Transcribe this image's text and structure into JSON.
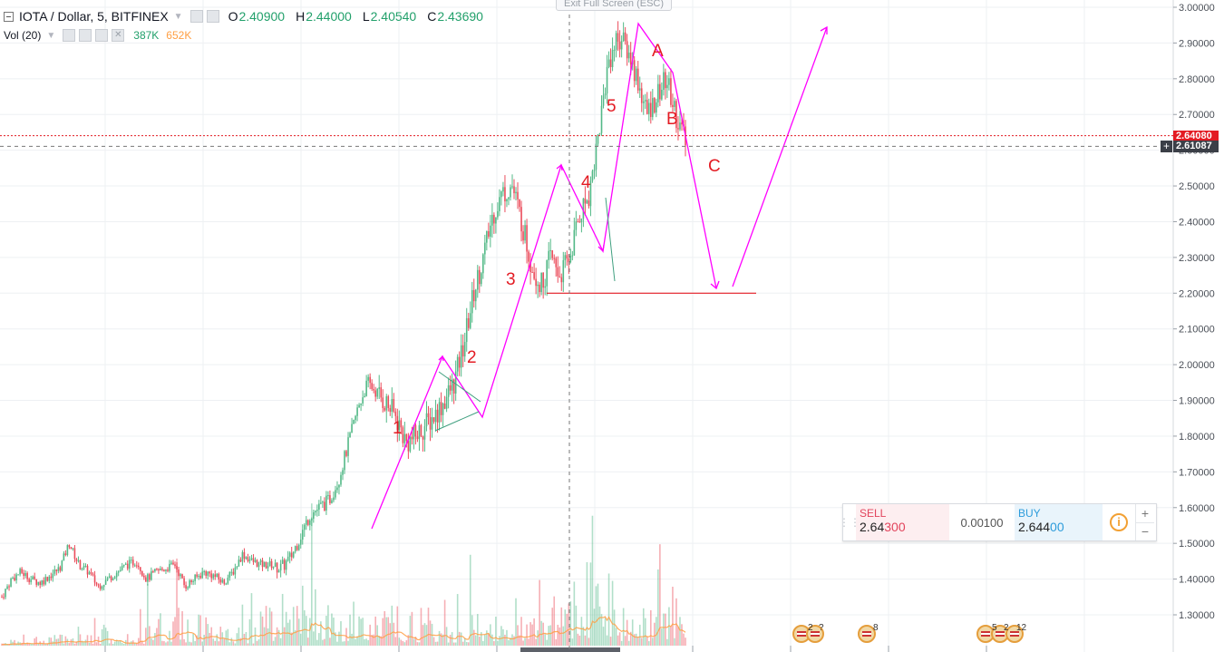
{
  "header": {
    "symbol": "IOTA / Dollar, 5, BITFINEX",
    "open_label": "O",
    "open": "2.40900",
    "high_label": "H",
    "high": "2.44000",
    "low_label": "L",
    "low": "2.40540",
    "close_label": "C",
    "close": "2.43690"
  },
  "volume_legend": {
    "label": "Vol (20)",
    "value1": "387K",
    "value2": "652K"
  },
  "fullscreen_banner": "Exit Full Screen (ESC)",
  "price_tags": {
    "red": "2.64080",
    "dark": "2.61087"
  },
  "trade_panel": {
    "sell_label": "SELL",
    "sell_price_main": "2.64",
    "sell_price_hl": "300",
    "spread": "0.00100",
    "buy_label": "BUY",
    "buy_price_main": "2.644",
    "buy_price_hl": "00",
    "info_icon": "info-icon",
    "plus": "+",
    "minus": "−"
  },
  "events": [
    {
      "count_a": "2",
      "count_b": "?"
    },
    {
      "count_a": "8",
      "count_b": ""
    },
    {
      "count_a": "5",
      "count_b": "2",
      "count_c": "12"
    }
  ],
  "colors": {
    "up": "#53b987",
    "down": "#eb4d5c",
    "drawing": "#ff00ff",
    "label": "#e31b23",
    "support": "#e31b23",
    "volume_ma": "#ff9f43",
    "grid": "#eef0f3"
  },
  "chart_data": {
    "type": "candlestick",
    "symbol": "IOTA / Dollar",
    "interval": "5",
    "exchange": "BITFINEX",
    "ylim": [
      1.24,
      3.01
    ],
    "y_ticks": [
      "3.00000",
      "2.90000",
      "2.80000",
      "2.70000",
      "2.60000",
      "2.50000",
      "2.40000",
      "2.30000",
      "2.20000",
      "2.10000",
      "2.00000",
      "1.90000",
      "1.80000",
      "1.70000",
      "1.60000",
      "1.50000",
      "1.40000",
      "1.30000"
    ],
    "price_path": [
      1.35,
      1.4,
      1.42,
      1.4,
      1.39,
      1.41,
      1.43,
      1.5,
      1.44,
      1.42,
      1.38,
      1.4,
      1.42,
      1.44,
      1.45,
      1.4,
      1.42,
      1.43,
      1.44,
      1.38,
      1.4,
      1.42,
      1.41,
      1.39,
      1.42,
      1.47,
      1.45,
      1.44,
      1.44,
      1.43,
      1.46,
      1.52,
      1.58,
      1.6,
      1.62,
      1.68,
      1.78,
      1.88,
      1.95,
      1.92,
      1.89,
      1.85,
      1.78,
      1.8,
      1.83,
      1.86,
      1.9,
      1.95,
      2.06,
      2.2,
      2.3,
      2.42,
      2.48,
      2.5,
      2.4,
      2.28,
      2.22,
      2.3,
      2.25,
      2.3,
      2.42,
      2.48,
      2.65,
      2.85,
      2.92,
      2.88,
      2.8,
      2.7,
      2.75,
      2.8,
      2.7,
      2.62
    ],
    "volume_pattern": [
      0.15,
      0.2,
      0.3,
      0.25,
      0.5,
      0.6,
      0.4,
      0.8,
      0.9,
      0.7,
      1.0,
      0.6,
      0.5,
      0.7,
      0.9,
      1.0,
      1.2,
      0.8,
      1.0,
      0.6
    ],
    "wave_labels": [
      "1",
      "2",
      "3",
      "4",
      "5",
      "A",
      "B",
      "C"
    ],
    "support_level": 2.2
  }
}
